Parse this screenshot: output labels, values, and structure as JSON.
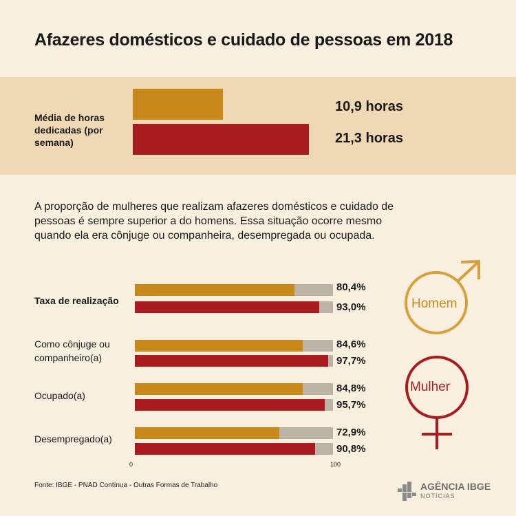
{
  "title": "Afazeres domésticos e cuidado de pessoas em 2018",
  "hours": {
    "label": "Média de horas dedicadas (por semana)",
    "men_text": "10,9 horas",
    "women_text": "21,3 horas"
  },
  "description": "A proporção de mulheres que realizam afazeres domésticos e cuidado de pessoas é sempre superior a do homens. Essa situação ocorre mesmo quando ela era cônjuge ou companheira, desempregada ou ocupada.",
  "rows": [
    {
      "label": "Taxa de realização",
      "men": "80,4%",
      "women": "93,0%"
    },
    {
      "label": "Como cônjuge ou companheiro(a)",
      "men": "84,6%",
      "women": "97,7%"
    },
    {
      "label": "Ocupado(a)",
      "men": "84,8%",
      "women": "95,7%"
    },
    {
      "label": "Desempregado(a)",
      "men": "72,9%",
      "women": "90,8%"
    }
  ],
  "axis": {
    "min_label": "0",
    "max_label": "100"
  },
  "legend": {
    "men": "Homem",
    "women": "Mulher"
  },
  "source": "Fonte: IBGE - PNAD Contínua - Outras Formas de Trabalho",
  "logo": {
    "top": "AGÊNCIA IBGE",
    "bottom": "NOTÍCIAS"
  },
  "colors": {
    "men": "#c8891a",
    "women": "#a81b1f",
    "remainder": "#bcb4a7",
    "band": "#efd8b4",
    "background": "#f9efdf"
  },
  "chart_data": [
    {
      "type": "bar",
      "title": "",
      "ylabel": "Média de horas dedicadas (por semana)",
      "series": [
        {
          "name": "Homem",
          "values": [
            10.9
          ]
        },
        {
          "name": "Mulher",
          "values": [
            21.3
          ]
        }
      ],
      "unit": "horas"
    },
    {
      "type": "bar",
      "categories": [
        "Taxa de realização",
        "Como cônjuge ou companheiro(a)",
        "Ocupado(a)",
        "Desempregado(a)"
      ],
      "series": [
        {
          "name": "Homem",
          "values": [
            80.4,
            84.6,
            84.8,
            72.9
          ]
        },
        {
          "name": "Mulher",
          "values": [
            93.0,
            97.7,
            95.7,
            90.8
          ]
        }
      ],
      "xlim": [
        0,
        100
      ],
      "unit": "%",
      "orientation": "horizontal",
      "grid": false,
      "legend": "right"
    }
  ]
}
